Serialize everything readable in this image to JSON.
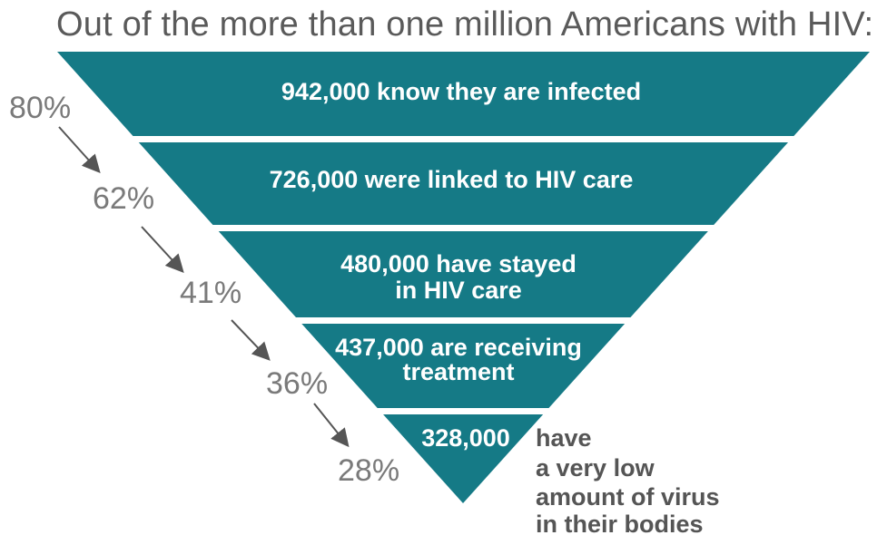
{
  "title": "Out of the more than one million Americans with HIV:",
  "colors": {
    "band": "#157a86",
    "band_text": "#ffffff",
    "percent_text": "#7a7a7a",
    "arrow": "#555555",
    "title_text": "#5a5a5a"
  },
  "stages": [
    {
      "lines": [
        "942,000 know they are infected"
      ],
      "percent": "80%"
    },
    {
      "lines": [
        "726,000 were linked to HIV care"
      ],
      "percent": "62%"
    },
    {
      "lines": [
        "480,000 have stayed",
        "in HIV care"
      ],
      "percent": "41%"
    },
    {
      "lines": [
        "437,000 are receiving",
        "treatment"
      ],
      "percent": "36%"
    },
    {
      "lines": [
        "328,000"
      ],
      "percent": "28%"
    }
  ],
  "final_note": [
    "have",
    "a very low",
    "amount of virus",
    "in their bodies"
  ]
}
